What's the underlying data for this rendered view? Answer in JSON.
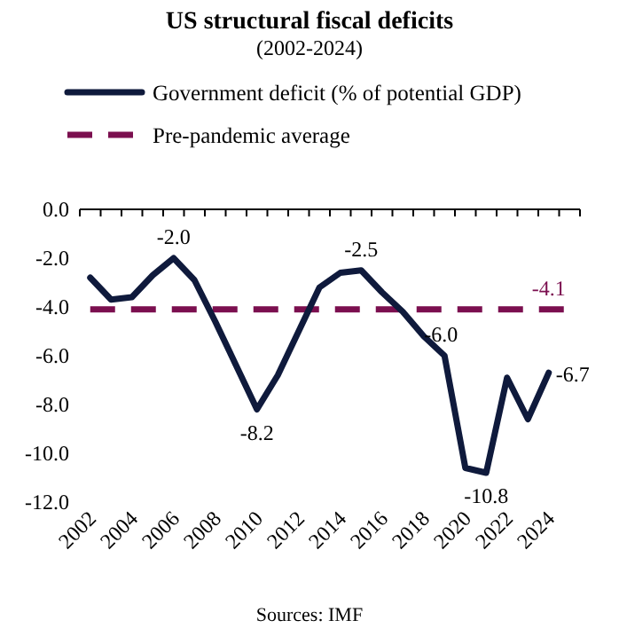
{
  "chart_data": {
    "type": "line",
    "title": "US structural fiscal deficits",
    "subtitle": "(2002-2024)",
    "categories": [
      "2002",
      null,
      "2004",
      null,
      "2006",
      null,
      "2008",
      null,
      "2010",
      null,
      "2012",
      null,
      "2014",
      null,
      "2016",
      null,
      "2018",
      null,
      "2020",
      null,
      "2022",
      null,
      "2024",
      null
    ],
    "series": [
      {
        "name": "Government deficit (% of potential GDP)",
        "color": "#0f1a3c",
        "line_style": "solid",
        "values": [
          -2.8,
          -3.7,
          -3.6,
          -2.7,
          -2.0,
          -2.9,
          -4.6,
          -6.4,
          -8.2,
          -6.8,
          -5.0,
          -3.2,
          -2.6,
          -2.5,
          -3.4,
          -4.2,
          -5.2,
          -6.0,
          -10.6,
          -10.8,
          -6.9,
          -8.6,
          -6.7,
          null
        ],
        "value_labels": [
          null,
          null,
          null,
          null,
          "-2.0",
          null,
          null,
          null,
          "-8.2",
          null,
          null,
          null,
          null,
          "-2.5",
          null,
          null,
          null,
          "-6.0",
          null,
          "-10.8",
          null,
          null,
          "-6.7",
          null
        ]
      },
      {
        "name": "Pre-pandemic average",
        "color": "#7b0f4f",
        "line_style": "dashed",
        "values": [
          -4.1,
          -4.1,
          -4.1,
          -4.1,
          -4.1,
          -4.1,
          -4.1,
          -4.1,
          -4.1,
          -4.1,
          -4.1,
          -4.1,
          -4.1,
          -4.1,
          -4.1,
          -4.1,
          -4.1,
          -4.1,
          -4.1,
          -4.1,
          -4.1,
          -4.1,
          -4.1,
          -4.1
        ],
        "value_labels": [
          null,
          null,
          null,
          null,
          null,
          null,
          null,
          null,
          null,
          null,
          null,
          null,
          null,
          null,
          null,
          null,
          null,
          null,
          null,
          null,
          null,
          null,
          "-4.1",
          null
        ]
      }
    ],
    "ylim": [
      -12,
      0
    ],
    "yticks": [
      {
        "value": 0,
        "label": "0.0"
      },
      {
        "value": -2,
        "label": "-2.0"
      },
      {
        "value": -4,
        "label": "-4.0"
      },
      {
        "value": -6,
        "label": "-6.0"
      },
      {
        "value": -8,
        "label": "-8.0"
      },
      {
        "value": -10,
        "label": "-10.0"
      },
      {
        "value": -12,
        "label": "-12.0"
      }
    ],
    "grid": false,
    "legend": "top",
    "marker": "none",
    "annotations": [
      "Sources: IMF"
    ]
  }
}
